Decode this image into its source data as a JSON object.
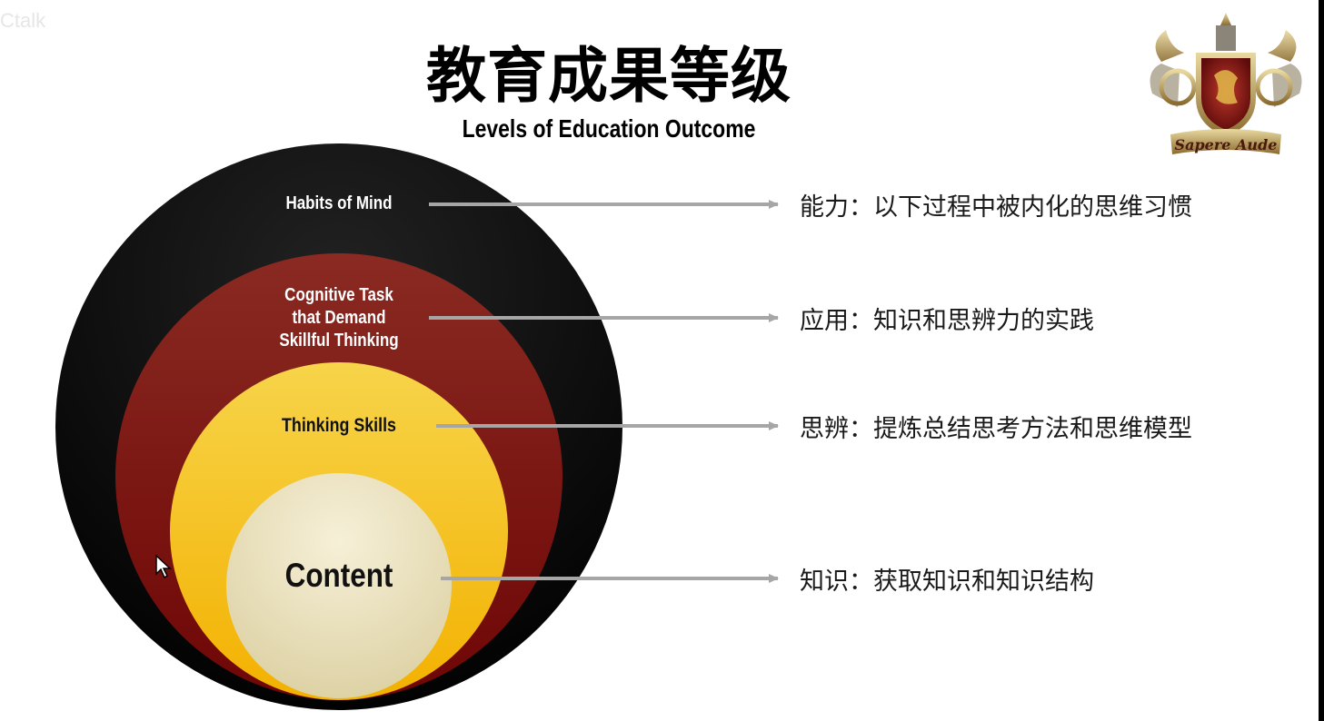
{
  "watermark": "Ctalk",
  "title": {
    "cn": "教育成果等级",
    "en": "Levels of Education Outcome"
  },
  "crest": {
    "motto": "Sapere Aude"
  },
  "levels": [
    {
      "label": "Habits of Mind",
      "color": "#000000",
      "text_color": "#ffffff",
      "description": "能力：以下过程中被内化的思维习惯"
    },
    {
      "label": "Cognitive Task that Demand Skillful Thinking",
      "label_lines": [
        "Cognitive Task",
        "that Demand",
        "Skillful Thinking"
      ],
      "color": "#7a0f0f",
      "text_color": "#ffffff",
      "description": "应用：知识和思辨力的实践"
    },
    {
      "label": "Thinking Skills",
      "color": "#f5b800",
      "text_color": "#111111",
      "description": "思辨：提炼总结思考方法和思维模型"
    },
    {
      "label": "Content",
      "color": "#ece3c0",
      "text_color": "#111111",
      "description": "知识：获取知识和知识结构"
    }
  ],
  "arrow_color": "#a6a6a6"
}
